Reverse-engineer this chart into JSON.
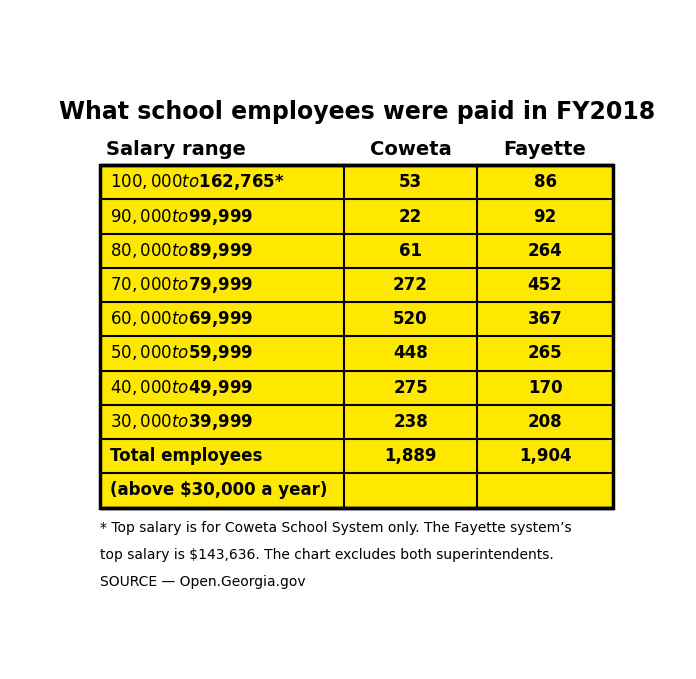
{
  "title": "What school employees were paid in FY2018",
  "col_headers": [
    "Salary range",
    "Coweta",
    "Fayette"
  ],
  "rows": [
    [
      "$100,000 to $162,765*",
      "53",
      "86"
    ],
    [
      "$90,000 to $99,999",
      "22",
      "92"
    ],
    [
      "$80,000 to $89,999",
      "61",
      "264"
    ],
    [
      "$70,000 to $79,999",
      "272",
      "452"
    ],
    [
      "$60,000 to $69,999",
      "520",
      "367"
    ],
    [
      "$50,000 to $59,999",
      "448",
      "265"
    ],
    [
      "$40,000 to $49,999",
      "275",
      "170"
    ],
    [
      "$30,000 to $39,999",
      "238",
      "208"
    ]
  ],
  "total_row_line1": [
    "Total employees",
    "1,889",
    "1,904"
  ],
  "total_row_line2": [
    "(above $30,000 a year)",
    "",
    ""
  ],
  "footnote_lines": [
    "* Top salary is for Coweta School System only. The Fayette system’s",
    "top salary is $143,636. The chart excludes both superintendents.",
    "SOURCE — Open.Georgia.gov"
  ],
  "table_bg_color": "#FFE800",
  "border_color": "#000000",
  "header_text_color": "#000000",
  "cell_text_color": "#000000",
  "title_color": "#000000",
  "bg_color": "#FFFFFF",
  "title_fontsize": 17,
  "header_fontsize": 14,
  "cell_fontsize": 12,
  "footnote_fontsize": 10,
  "figwidth": 6.96,
  "figheight": 6.79,
  "dpi": 100
}
